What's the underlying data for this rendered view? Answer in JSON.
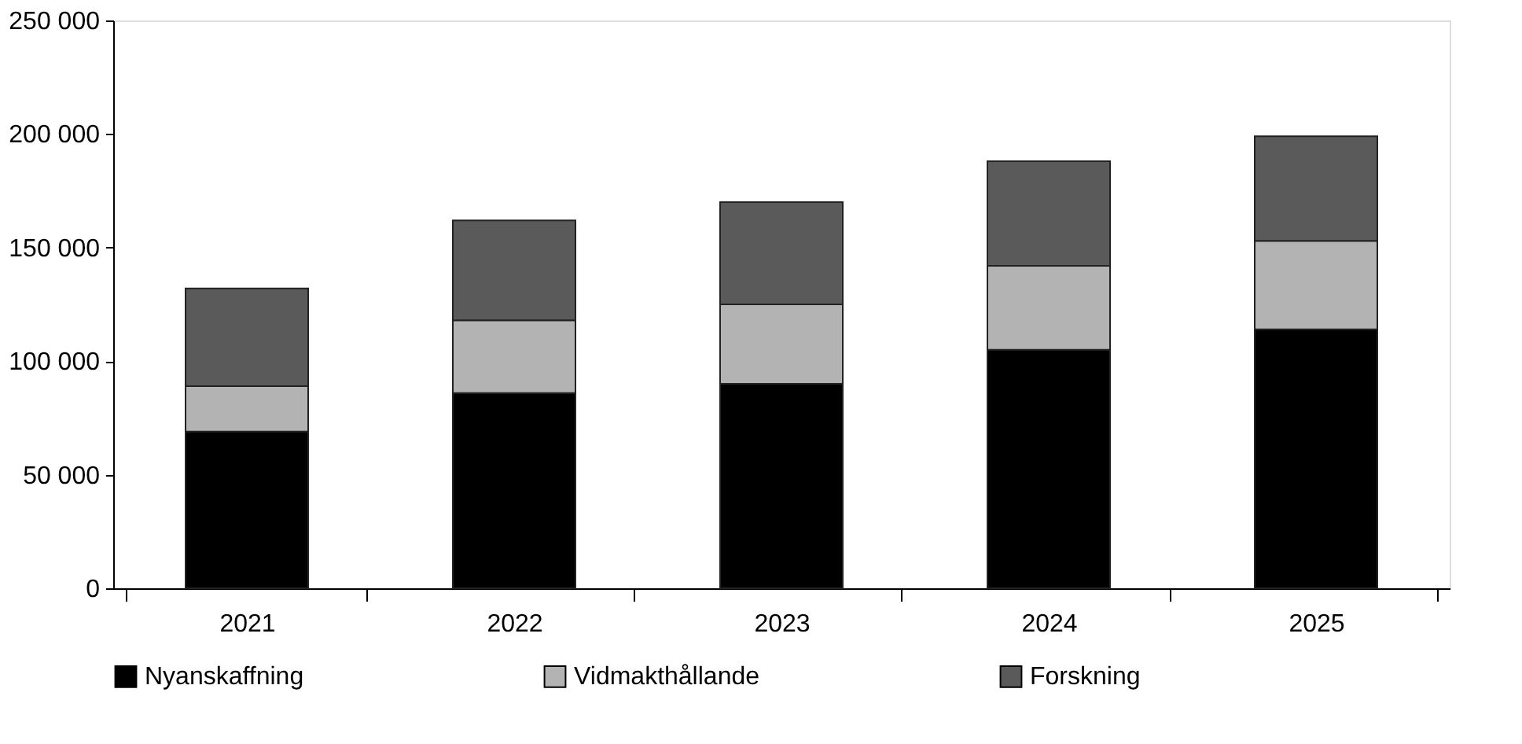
{
  "chart_data": {
    "type": "bar",
    "stacked": true,
    "categories": [
      "2021",
      "2022",
      "2023",
      "2024",
      "2025"
    ],
    "series": [
      {
        "name": "Nyanskaffning",
        "color": "#000000",
        "values": [
          69000,
          86000,
          90000,
          105000,
          114000
        ]
      },
      {
        "name": "Vidmakthållande",
        "color": "#b3b3b3",
        "values": [
          20000,
          32000,
          35000,
          37000,
          39000
        ]
      },
      {
        "name": "Forskning",
        "color": "#5a5a5a",
        "values": [
          43000,
          44000,
          45000,
          46000,
          46000
        ]
      }
    ],
    "ylim": [
      0,
      250000
    ],
    "yticks": [
      {
        "value": 0,
        "label": "0"
      },
      {
        "value": 50000,
        "label": "50 000"
      },
      {
        "value": 100000,
        "label": "100 000"
      },
      {
        "value": 150000,
        "label": "150 000"
      },
      {
        "value": 200000,
        "label": "200 000"
      },
      {
        "value": 250000,
        "label": "250 000"
      }
    ],
    "grid": false,
    "legend": "bottom"
  }
}
